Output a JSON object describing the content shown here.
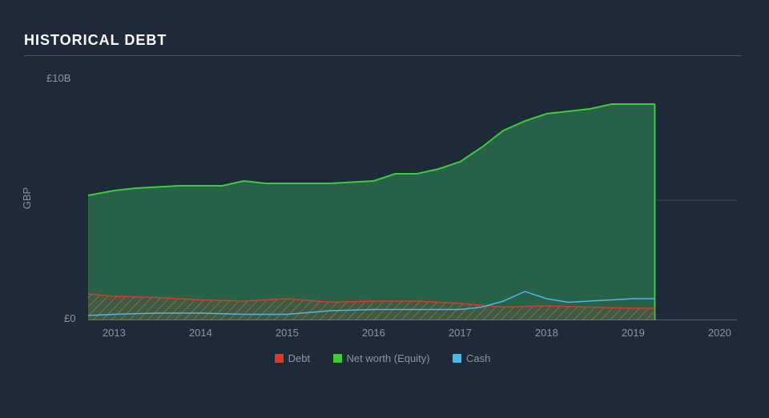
{
  "chart": {
    "type": "area",
    "title": "HISTORICAL DEBT",
    "background_color": "#1e2a38",
    "title_color": "#ffffff",
    "title_fontsize": 18,
    "axis_text_color": "#8a96a3",
    "axis_fontsize": 13,
    "ylabel": "GBP",
    "ylim": [
      0,
      10
    ],
    "ytick_top_label": "£10B",
    "ytick_bottom_label": "£0",
    "xlim": [
      2012.7,
      2020.2
    ],
    "xticks": [
      2013,
      2014,
      2015,
      2016,
      2017,
      2018,
      2019,
      2020
    ],
    "xtick_labels": [
      "2013",
      "2014",
      "2015",
      "2016",
      "2017",
      "2018",
      "2019",
      "2020"
    ],
    "grid_color": "#3a4858",
    "baseline_color": "#8a96a3",
    "series": {
      "equity": {
        "label": "Net worth (Equity)",
        "stroke": "#3dcc3d",
        "fill": "#2a6b4a",
        "fill_opacity": 0.85,
        "stroke_width": 2,
        "x": [
          2012.7,
          2013.0,
          2013.25,
          2013.5,
          2013.75,
          2014.0,
          2014.25,
          2014.5,
          2014.75,
          2015.0,
          2015.25,
          2015.5,
          2015.75,
          2016.0,
          2016.25,
          2016.5,
          2016.75,
          2017.0,
          2017.25,
          2017.5,
          2017.75,
          2018.0,
          2018.25,
          2018.5,
          2018.75,
          2019.0,
          2019.25
        ],
        "y": [
          5.2,
          5.4,
          5.5,
          5.55,
          5.6,
          5.6,
          5.6,
          5.8,
          5.7,
          5.7,
          5.7,
          5.7,
          5.75,
          5.8,
          6.1,
          6.1,
          6.3,
          6.6,
          7.2,
          7.9,
          8.3,
          8.6,
          8.7,
          8.8,
          9.0,
          9.0,
          9.0
        ]
      },
      "debt": {
        "label": "Debt",
        "stroke": "#d93a2b",
        "fill": "#6b4a2a",
        "hatch_color": "#7a8694",
        "fill_opacity": 0.85,
        "stroke_width": 1.5,
        "x": [
          2012.7,
          2013.0,
          2013.5,
          2014.0,
          2014.5,
          2015.0,
          2015.5,
          2016.0,
          2016.5,
          2017.0,
          2017.5,
          2018.0,
          2018.5,
          2019.0,
          2019.25
        ],
        "y": [
          1.1,
          1.0,
          0.95,
          0.85,
          0.8,
          0.9,
          0.75,
          0.8,
          0.8,
          0.7,
          0.55,
          0.6,
          0.55,
          0.5,
          0.5
        ]
      },
      "cash": {
        "label": "Cash",
        "stroke": "#4db8e8",
        "stroke_width": 1.5,
        "x": [
          2012.7,
          2013.0,
          2013.5,
          2014.0,
          2014.5,
          2015.0,
          2015.5,
          2016.0,
          2016.5,
          2017.0,
          2017.25,
          2017.5,
          2017.75,
          2018.0,
          2018.25,
          2018.5,
          2018.75,
          2019.0,
          2019.25
        ],
        "y": [
          0.2,
          0.25,
          0.3,
          0.3,
          0.25,
          0.25,
          0.4,
          0.45,
          0.45,
          0.45,
          0.55,
          0.8,
          1.2,
          0.9,
          0.75,
          0.8,
          0.85,
          0.9,
          0.9
        ]
      }
    },
    "legend_order": [
      "debt",
      "equity",
      "cash"
    ],
    "legend_swatch": {
      "debt": "#d93a2b",
      "equity": "#3dcc3d",
      "cash": "#4db8e8"
    }
  }
}
